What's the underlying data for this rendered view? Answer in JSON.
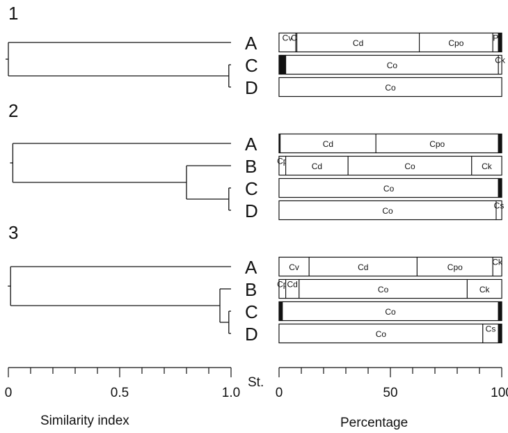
{
  "chart_data": [
    {
      "type": "dendrogram",
      "panel": "1",
      "stations": [
        "A",
        "C",
        "D"
      ],
      "merges": [
        {
          "join": [
            "C",
            "D"
          ],
          "similarity": 0.99
        },
        {
          "join": [
            "A",
            "CD"
          ],
          "similarity": 0.0
        }
      ]
    },
    {
      "type": "bar",
      "subtype": "stacked-horizontal-100",
      "panel": "1",
      "rows": [
        {
          "station": "A",
          "segments": [
            {
              "label": "Cv",
              "value": 7.5
            },
            {
              "label": "Cp",
              "value": 0.5
            },
            {
              "label": "Cd",
              "value": 55.0
            },
            {
              "label": "Cpo",
              "value": 33.0
            },
            {
              "label": "P",
              "value": 2.5
            },
            {
              "label": "",
              "value": 1.5
            }
          ]
        },
        {
          "station": "C",
          "segments": [
            {
              "label": "",
              "value": 1.0
            },
            {
              "label": "",
              "value": 2.0
            },
            {
              "label": "Co",
              "value": 95.5
            },
            {
              "label": "Ck",
              "value": 1.5
            }
          ]
        },
        {
          "station": "D",
          "segments": [
            {
              "label": "Co",
              "value": 100
            }
          ]
        }
      ]
    },
    {
      "type": "dendrogram",
      "panel": "2",
      "stations": [
        "A",
        "B",
        "C",
        "D"
      ],
      "merges": [
        {
          "join": [
            "C",
            "D"
          ],
          "similarity": 0.99
        },
        {
          "join": [
            "B",
            "CD"
          ],
          "similarity": 0.8
        },
        {
          "join": [
            "A",
            "BCD"
          ],
          "similarity": 0.02
        }
      ]
    },
    {
      "type": "bar",
      "subtype": "stacked-horizontal-100",
      "panel": "2",
      "rows": [
        {
          "station": "A",
          "segments": [
            {
              "label": "",
              "value": 0.5
            },
            {
              "label": "Cd",
              "value": 43.0
            },
            {
              "label": "Cpo",
              "value": 55.0
            },
            {
              "label": "",
              "value": 1.5
            }
          ]
        },
        {
          "station": "B",
          "segments": [
            {
              "label": "Cp",
              "value": 3.0
            },
            {
              "label": "Cd",
              "value": 28.0
            },
            {
              "label": "Co",
              "value": 55.5
            },
            {
              "label": "Ck",
              "value": 13.5
            }
          ]
        },
        {
          "station": "C",
          "segments": [
            {
              "label": "Co",
              "value": 98.5
            },
            {
              "label": "",
              "value": 1.5
            }
          ]
        },
        {
          "station": "D",
          "segments": [
            {
              "label": "Co",
              "value": 97.5
            },
            {
              "label": "Cs",
              "value": 2.5
            }
          ]
        }
      ]
    },
    {
      "type": "dendrogram",
      "panel": "3",
      "stations": [
        "A",
        "B",
        "C",
        "D"
      ],
      "merges": [
        {
          "join": [
            "C",
            "D"
          ],
          "similarity": 0.99
        },
        {
          "join": [
            "B",
            "CD"
          ],
          "similarity": 0.95
        },
        {
          "join": [
            "A",
            "BCD"
          ],
          "similarity": 0.01
        }
      ]
    },
    {
      "type": "bar",
      "subtype": "stacked-horizontal-100",
      "panel": "3",
      "rows": [
        {
          "station": "A",
          "segments": [
            {
              "label": "Cv",
              "value": 13.5
            },
            {
              "label": "Cd",
              "value": 48.5
            },
            {
              "label": "Cpo",
              "value": 34.0
            },
            {
              "label": "Ck",
              "value": 4.0
            }
          ]
        },
        {
          "station": "B",
          "segments": [
            {
              "label": "Cp",
              "value": 3.0
            },
            {
              "label": "Cd",
              "value": 6.0
            },
            {
              "label": "Co",
              "value": 75.5
            },
            {
              "label": "Ck",
              "value": 15.5
            }
          ]
        },
        {
          "station": "C",
          "segments": [
            {
              "label": "",
              "value": 1.5
            },
            {
              "label": "Co",
              "value": 97.0
            },
            {
              "label": "",
              "value": 1.5
            }
          ]
        },
        {
          "station": "D",
          "segments": [
            {
              "label": "Co",
              "value": 91.5
            },
            {
              "label": "Cs",
              "value": 7.0
            },
            {
              "label": "",
              "value": 1.5
            }
          ]
        }
      ]
    }
  ],
  "axes": {
    "similarity": {
      "ticks": [
        "0",
        "0.5",
        "1.0"
      ],
      "range": [
        0,
        1
      ],
      "title": "Similarity index"
    },
    "percentage": {
      "ticks": [
        "0",
        "50",
        "100"
      ],
      "range": [
        0,
        100
      ],
      "title": "Percentage"
    },
    "st_label": "St."
  }
}
